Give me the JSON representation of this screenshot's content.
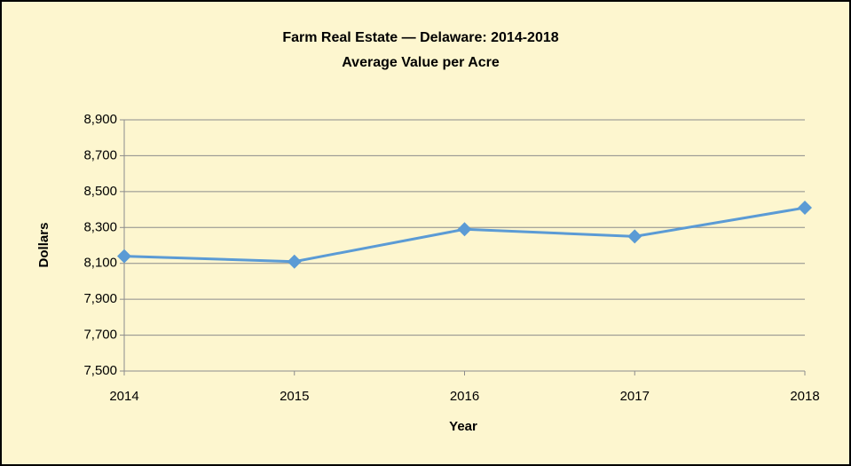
{
  "chart_data": {
    "type": "line",
    "title": "Farm Real Estate — Delaware: 2014-2018",
    "subtitle": "Average Value per Acre",
    "x_label": "Year",
    "y_label": "Dollars",
    "x": [
      2014,
      2015,
      2016,
      2017,
      2018
    ],
    "xlim": [
      2014,
      2018
    ],
    "xticks": [
      2014,
      2015,
      2016,
      2017,
      2018
    ],
    "series": [
      {
        "name": "Average Value per Acre",
        "color": "#5b9bd5",
        "values": [
          8140,
          8110,
          8290,
          8250,
          8410
        ]
      }
    ],
    "ylim": [
      7500,
      8900
    ],
    "yticks": [
      {
        "value": 7500,
        "label": "7,500"
      },
      {
        "value": 7700,
        "label": "7,700"
      },
      {
        "value": 7900,
        "label": "7,900"
      },
      {
        "value": 8100,
        "label": "8,100"
      },
      {
        "value": 8300,
        "label": "8,300"
      },
      {
        "value": 8500,
        "label": "8,500"
      },
      {
        "value": 8700,
        "label": "8,700"
      },
      {
        "value": 8900,
        "label": "8,900"
      }
    ],
    "grid": true
  }
}
